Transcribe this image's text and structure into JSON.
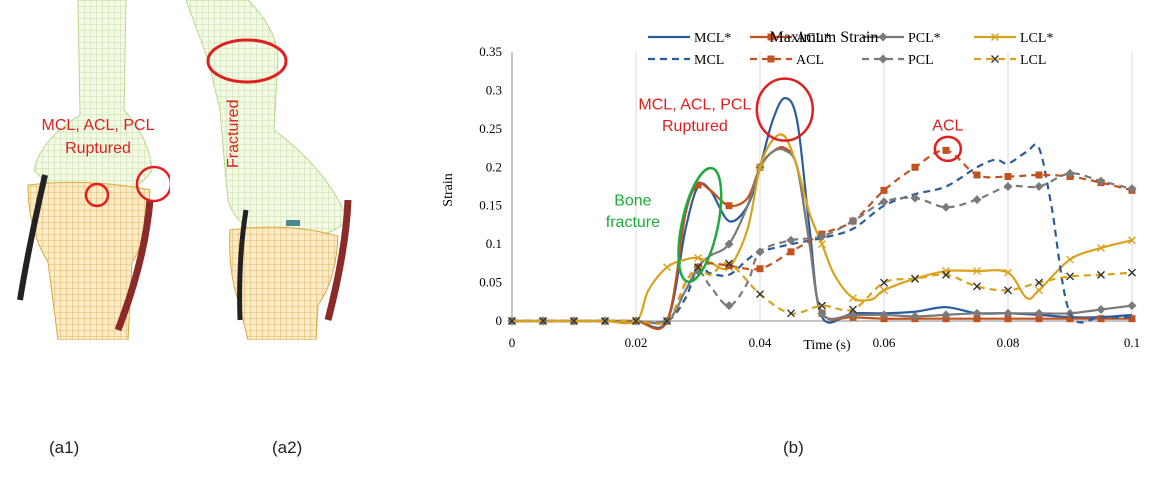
{
  "panels": {
    "a1": {
      "caption": "(a1)",
      "label_line1": "MCL, ACL, PCL",
      "label_line2": "Ruptured"
    },
    "a2": {
      "caption": "(a2)",
      "label": "Fractured"
    },
    "b": {
      "caption": "(b)"
    }
  },
  "colors": {
    "MCL": "#2a5d9b",
    "ACL": "#c2521f",
    "PCL": "#7a7a7a",
    "LCL": "#d9a21b",
    "annotation_red": "#e02020",
    "annotation_green": "#1faa3c",
    "femur_mesh": "#b6d98b",
    "tibia_mesh": "#d9a844",
    "ligament": "#8c2a2a"
  },
  "chart_data": {
    "type": "line",
    "title": "Maximum Strain",
    "xlabel": "Time (s)",
    "ylabel": "Strain",
    "xlim": [
      0,
      0.1
    ],
    "ylim": [
      0,
      0.35
    ],
    "x_ticks": [
      "0",
      "0.02",
      "0.04",
      "0.06",
      "0.08",
      "0.1"
    ],
    "y_ticks": [
      "0",
      "0.05",
      "0.1",
      "0.15",
      "0.2",
      "0.25",
      "0.3",
      "0.35"
    ],
    "grid": "vertical",
    "legend_position": "top",
    "series": [
      {
        "name": "MCL*",
        "color_key": "MCL",
        "dash": "solid",
        "marker": "none",
        "x": [
          0,
          0.005,
          0.01,
          0.015,
          0.02,
          0.025,
          0.028,
          0.03,
          0.032,
          0.035,
          0.038,
          0.04,
          0.042,
          0.044,
          0.046,
          0.048,
          0.05,
          0.055,
          0.06,
          0.065,
          0.07,
          0.075,
          0.08,
          0.085,
          0.09,
          0.095,
          0.1
        ],
        "y": [
          0,
          0,
          0,
          0,
          0,
          0,
          0.12,
          0.175,
          0.17,
          0.13,
          0.15,
          0.2,
          0.26,
          0.29,
          0.26,
          0.12,
          0.005,
          0.01,
          0.01,
          0.012,
          0.018,
          0.01,
          0.01,
          0.008,
          0.005,
          0.005,
          0.008
        ]
      },
      {
        "name": "ACL*",
        "color_key": "ACL",
        "dash": "solid",
        "marker": "square",
        "x": [
          0,
          0.005,
          0.01,
          0.015,
          0.02,
          0.025,
          0.028,
          0.03,
          0.032,
          0.035,
          0.038,
          0.04,
          0.042,
          0.044,
          0.046,
          0.048,
          0.05,
          0.055,
          0.06,
          0.065,
          0.07,
          0.075,
          0.08,
          0.085,
          0.09,
          0.095,
          0.1
        ],
        "y": [
          0,
          0,
          0,
          0,
          0,
          0,
          0.14,
          0.177,
          0.17,
          0.15,
          0.16,
          0.2,
          0.22,
          0.225,
          0.2,
          0.1,
          0.01,
          0.005,
          0.003,
          0.003,
          0.003,
          0.003,
          0.003,
          0.003,
          0.003,
          0.003,
          0.003
        ]
      },
      {
        "name": "PCL*",
        "color_key": "PCL",
        "dash": "solid",
        "marker": "diamond",
        "x": [
          0,
          0.005,
          0.01,
          0.015,
          0.02,
          0.025,
          0.028,
          0.03,
          0.032,
          0.035,
          0.038,
          0.04,
          0.042,
          0.044,
          0.046,
          0.048,
          0.05,
          0.055,
          0.06,
          0.065,
          0.07,
          0.075,
          0.08,
          0.085,
          0.09,
          0.095,
          0.1
        ],
        "y": [
          0,
          0,
          0,
          0,
          0,
          0,
          0.04,
          0.07,
          0.085,
          0.1,
          0.15,
          0.2,
          0.22,
          0.222,
          0.2,
          0.1,
          0.01,
          0.008,
          0.008,
          0.006,
          0.008,
          0.01,
          0.01,
          0.01,
          0.01,
          0.015,
          0.02
        ]
      },
      {
        "name": "LCL*",
        "color_key": "LCL",
        "dash": "solid",
        "marker": "x",
        "x": [
          0,
          0.005,
          0.01,
          0.015,
          0.02,
          0.022,
          0.025,
          0.028,
          0.03,
          0.032,
          0.035,
          0.038,
          0.04,
          0.042,
          0.044,
          0.046,
          0.048,
          0.05,
          0.052,
          0.055,
          0.058,
          0.06,
          0.065,
          0.07,
          0.075,
          0.08,
          0.083,
          0.085,
          0.09,
          0.095,
          0.1
        ],
        "y": [
          0,
          0,
          0,
          0,
          0,
          0.04,
          0.07,
          0.08,
          0.082,
          0.076,
          0.07,
          0.12,
          0.2,
          0.235,
          0.24,
          0.2,
          0.14,
          0.1,
          0.06,
          0.03,
          0.028,
          0.04,
          0.055,
          0.065,
          0.065,
          0.063,
          0.03,
          0.04,
          0.08,
          0.095,
          0.105
        ]
      },
      {
        "name": "MCL",
        "color_key": "MCL",
        "dash": "dashed",
        "marker": "none",
        "x": [
          0,
          0.005,
          0.01,
          0.015,
          0.02,
          0.025,
          0.028,
          0.03,
          0.032,
          0.035,
          0.038,
          0.04,
          0.045,
          0.05,
          0.055,
          0.06,
          0.065,
          0.07,
          0.075,
          0.078,
          0.08,
          0.083,
          0.085,
          0.087,
          0.09,
          0.095,
          0.1
        ],
        "y": [
          0,
          0,
          0,
          0,
          0,
          0,
          0.03,
          0.07,
          0.062,
          0.06,
          0.08,
          0.09,
          0.1,
          0.108,
          0.12,
          0.15,
          0.165,
          0.175,
          0.2,
          0.21,
          0.205,
          0.22,
          0.225,
          0.15,
          0.01,
          0.005,
          0.005
        ]
      },
      {
        "name": "ACL",
        "color_key": "ACL",
        "dash": "dashed",
        "marker": "square",
        "x": [
          0,
          0.005,
          0.01,
          0.015,
          0.02,
          0.025,
          0.028,
          0.03,
          0.032,
          0.035,
          0.04,
          0.045,
          0.05,
          0.055,
          0.06,
          0.065,
          0.07,
          0.075,
          0.08,
          0.085,
          0.09,
          0.095,
          0.1
        ],
        "y": [
          0,
          0,
          0,
          0,
          0,
          0,
          0.05,
          0.07,
          0.075,
          0.072,
          0.068,
          0.09,
          0.113,
          0.13,
          0.17,
          0.2,
          0.222,
          0.19,
          0.188,
          0.19,
          0.188,
          0.18,
          0.17
        ]
      },
      {
        "name": "PCL",
        "color_key": "PCL",
        "dash": "dashed",
        "marker": "diamond",
        "x": [
          0,
          0.005,
          0.01,
          0.015,
          0.02,
          0.025,
          0.028,
          0.03,
          0.032,
          0.035,
          0.038,
          0.04,
          0.045,
          0.05,
          0.055,
          0.06,
          0.065,
          0.07,
          0.075,
          0.08,
          0.085,
          0.09,
          0.095,
          0.1
        ],
        "y": [
          0,
          0,
          0,
          0,
          0,
          0,
          0.04,
          0.065,
          0.045,
          0.02,
          0.05,
          0.09,
          0.105,
          0.11,
          0.13,
          0.155,
          0.16,
          0.148,
          0.158,
          0.175,
          0.175,
          0.192,
          0.182,
          0.172
        ]
      },
      {
        "name": "LCL",
        "color_key": "LCL",
        "dash": "dashed",
        "marker": "x",
        "x": [
          0,
          0.005,
          0.01,
          0.015,
          0.02,
          0.025,
          0.028,
          0.03,
          0.032,
          0.035,
          0.04,
          0.045,
          0.05,
          0.055,
          0.06,
          0.065,
          0.07,
          0.075,
          0.08,
          0.085,
          0.09,
          0.095,
          0.1
        ],
        "y": [
          0,
          0,
          0,
          0,
          0,
          0,
          0.05,
          0.07,
          0.06,
          0.075,
          0.035,
          0.01,
          0.02,
          0.015,
          0.05,
          0.055,
          0.06,
          0.045,
          0.04,
          0.05,
          0.058,
          0.06,
          0.063
        ]
      }
    ],
    "annotations": [
      {
        "text_line1": "MCL, ACL, PCL",
        "text_line2": "Ruptured",
        "color_key": "annotation_red"
      },
      {
        "text": "ACL",
        "color_key": "annotation_red"
      },
      {
        "text_line1": "Bone",
        "text_line2": "fracture",
        "color_key": "annotation_green"
      }
    ]
  }
}
